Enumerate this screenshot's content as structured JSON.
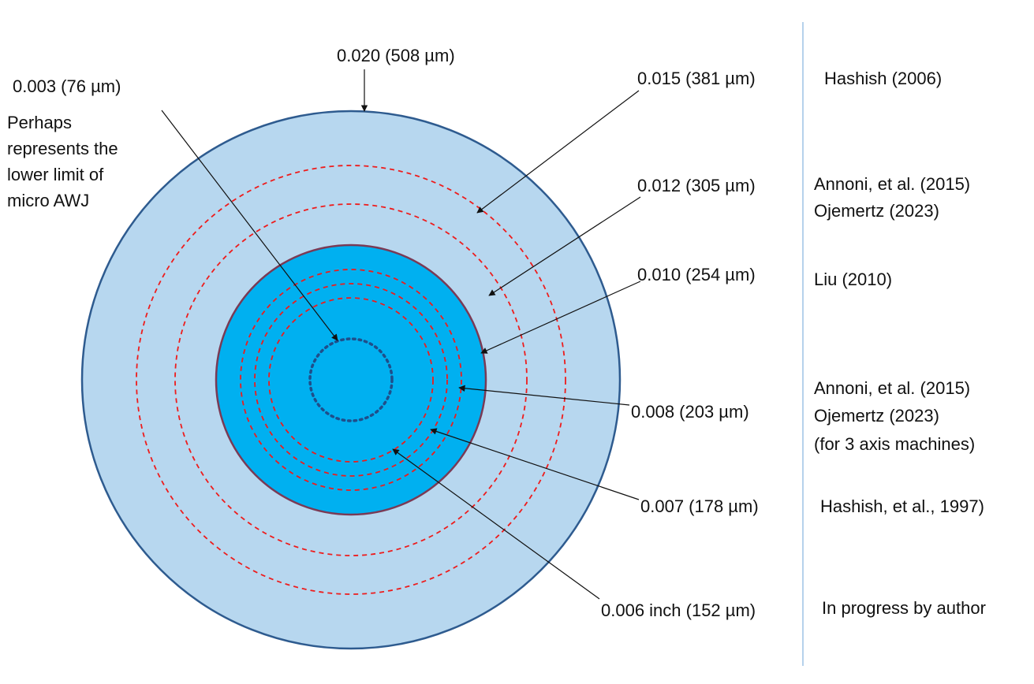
{
  "colors": {
    "outer_fill": "#b7d7ef",
    "outer_stroke": "#2e5b8f",
    "inner_fill": "#00b0f0",
    "inner_stroke": "#7a3a55",
    "ring_dash": "#ee1c1c",
    "micro_dot": "#1f4e8a",
    "arrow": "#111111",
    "divider": "#9dc3e6"
  },
  "labels": {
    "d020": "0.020 (508 µm)",
    "d015": "0.015 (381 µm)",
    "d012": "0.012 (305 µm)",
    "d010": "0.010 (254 µm)",
    "d008": "0.008 (203 µm)",
    "d007": "0.007 (178 µm)",
    "d006": "0.006 inch (152 µm)",
    "d003": "0.003 (76 µm)"
  },
  "micro_note": {
    "line1": "Perhaps",
    "line2": "represents the",
    "line3": "lower limit of",
    "line4": "micro AWJ"
  },
  "references": {
    "hashish_2006": "Hashish (2006)",
    "annoni_a": "Annoni, et al. (2015)",
    "ojemertz_a": "Ojemertz (2023)",
    "liu_2010": "Liu (2010)",
    "annoni_b": "Annoni, et al. (2015)",
    "ojemertz_b": "Ojemertz (2023)",
    "three_axis": "(for 3 axis machines)",
    "hashish_1997": "Hashish, et al., 1997)",
    "in_progress": "In progress by author"
  }
}
